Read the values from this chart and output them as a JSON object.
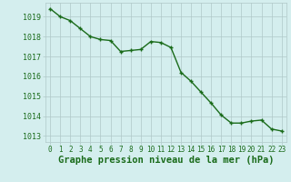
{
  "x": [
    0,
    1,
    2,
    3,
    4,
    5,
    6,
    7,
    8,
    9,
    10,
    11,
    12,
    13,
    14,
    15,
    16,
    17,
    18,
    19,
    20,
    21,
    22,
    23
  ],
  "y": [
    1019.4,
    1019.0,
    1018.8,
    1018.4,
    1018.0,
    1017.85,
    1017.8,
    1017.25,
    1017.3,
    1017.35,
    1017.75,
    1017.7,
    1017.45,
    1016.2,
    1015.75,
    1015.2,
    1014.65,
    1014.05,
    1013.65,
    1013.65,
    1013.75,
    1013.8,
    1013.35,
    1013.25
  ],
  "line_color": "#1a6b1a",
  "marker_color": "#1a6b1a",
  "bg_color": "#d4eeee",
  "grid_color": "#b0c8c8",
  "grid_color_minor": "#c8e0e0",
  "xlabel": "Graphe pression niveau de la mer (hPa)",
  "xlabel_color": "#1a6b1a",
  "ylabel_ticks": [
    1013,
    1014,
    1015,
    1016,
    1017,
    1018,
    1019
  ],
  "ylim": [
    1012.7,
    1019.7
  ],
  "xlim": [
    -0.5,
    23.5
  ],
  "tick_label_color": "#1a6b1a",
  "tick_fontsize": 5.5,
  "xlabel_fontsize": 7.5,
  "line_width": 1.0,
  "marker_size": 3.5
}
